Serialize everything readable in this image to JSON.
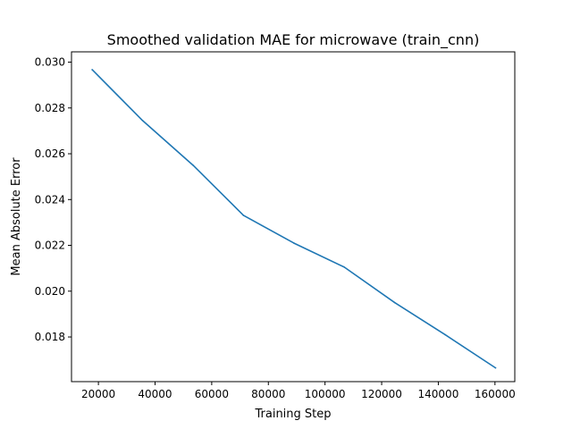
{
  "chart_data": {
    "type": "line",
    "title": "Smoothed validation MAE for microwave (train_cnn)",
    "xlabel": "Training Step",
    "ylabel": "Mean Absolute Error",
    "xlim": [
      10500,
      167000
    ],
    "ylim": [
      0.01605,
      0.03045
    ],
    "xticks": [
      20000,
      40000,
      60000,
      80000,
      100000,
      120000,
      140000,
      160000
    ],
    "yticks": [
      0.018,
      0.02,
      0.022,
      0.024,
      0.026,
      0.028,
      0.03
    ],
    "xtick_labels": [
      "20000",
      "40000",
      "60000",
      "80000",
      "100000",
      "120000",
      "140000",
      "160000"
    ],
    "ytick_labels": [
      "0.018",
      "0.020",
      "0.022",
      "0.024",
      "0.026",
      "0.028",
      "0.030"
    ],
    "grid": false,
    "legend": "none",
    "series": [
      {
        "color": "#1f77b4",
        "x": [
          17800,
          35600,
          53400,
          71200,
          89000,
          106800,
          124600,
          142400,
          160200
        ],
        "y": [
          0.02967,
          0.02745,
          0.0255,
          0.02331,
          0.0221,
          0.02105,
          0.0195,
          0.0181,
          0.01665
        ]
      }
    ]
  }
}
